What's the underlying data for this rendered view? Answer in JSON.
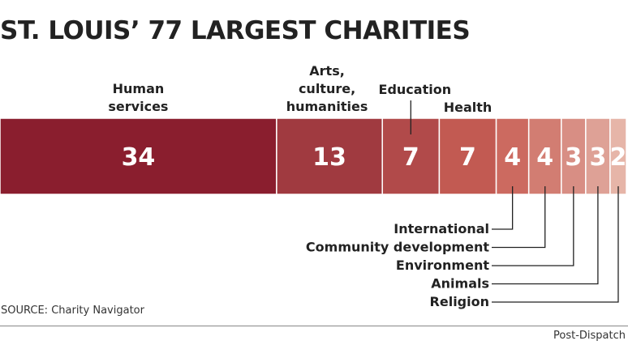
{
  "chart_data": {
    "type": "bar",
    "layout": "stacked-horizontal",
    "title": "ST. LOUIS’ 77 LARGEST CHARITIES",
    "total": 77,
    "categories": [
      "Human services",
      "Arts, culture, humanities",
      "Education",
      "Health",
      "International",
      "Community development",
      "Environment",
      "Animals",
      "Religion"
    ],
    "category_label_lines": [
      [
        "Human",
        "services"
      ],
      [
        "Arts,",
        "culture,",
        "humanities"
      ],
      [
        "Education"
      ],
      [
        "Health"
      ],
      [
        "International"
      ],
      [
        "Community development"
      ],
      [
        "Environment"
      ],
      [
        "Animals"
      ],
      [
        "Religion"
      ]
    ],
    "label_positions": [
      "above",
      "above",
      "above",
      "above",
      "below",
      "below",
      "below",
      "below",
      "below"
    ],
    "values": [
      34,
      13,
      7,
      7,
      4,
      4,
      3,
      3,
      2
    ],
    "colors": [
      "#8a1e2e",
      "#a03a40",
      "#b14a4a",
      "#c25a52",
      "#cc6a60",
      "#d27d72",
      "#d88e84",
      "#dea196",
      "#e6b5a8"
    ],
    "xlabel": "",
    "ylabel": ""
  },
  "source": "SOURCE: Charity Navigator",
  "credit": "Post-Dispatch"
}
